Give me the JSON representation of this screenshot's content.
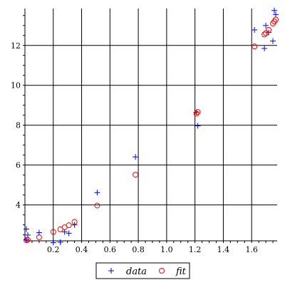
{
  "chart_data": {
    "type": "scatter",
    "title": "",
    "xlabel": "",
    "ylabel": "",
    "xlim": [
      0,
      1.78
    ],
    "ylim": [
      2.2,
      13.85
    ],
    "grid": true,
    "legend_position": "bottom-center",
    "x_ticks": [
      0.2,
      0.4,
      0.6,
      0.8,
      1.0,
      1.2,
      1.4,
      1.6
    ],
    "x_tick_labels": [
      "0.2",
      "0.4",
      "0.6",
      "0.8",
      "1.0",
      "1.2",
      "1.4",
      "1.6"
    ],
    "y_ticks": [
      4,
      6,
      8,
      10,
      12
    ],
    "y_tick_labels": [
      "4",
      "6",
      "8",
      "10",
      "12"
    ],
    "series": [
      {
        "name": "data",
        "marker": "plus",
        "color": "#0000ff",
        "points": [
          [
            0.01,
            2.79
          ],
          [
            0.02,
            2.49
          ],
          [
            0.01,
            2.25
          ],
          [
            0.1,
            2.61
          ],
          [
            0.2,
            2.11
          ],
          [
            0.25,
            2.13
          ],
          [
            0.28,
            2.65
          ],
          [
            0.31,
            2.58
          ],
          [
            0.35,
            3.0
          ],
          [
            0.51,
            4.62
          ],
          [
            0.78,
            6.41
          ],
          [
            1.21,
            8.65
          ],
          [
            1.22,
            7.97
          ],
          [
            1.62,
            12.78
          ],
          [
            1.69,
            11.85
          ],
          [
            1.7,
            13.0
          ],
          [
            1.72,
            12.65
          ],
          [
            1.75,
            12.22
          ],
          [
            1.76,
            13.75
          ],
          [
            1.77,
            13.55
          ]
        ]
      },
      {
        "name": "fit",
        "marker": "circle",
        "color": "#ff0000",
        "points": [
          [
            0.01,
            2.23
          ],
          [
            0.02,
            2.25
          ],
          [
            0.1,
            2.38
          ],
          [
            0.2,
            2.65
          ],
          [
            0.25,
            2.78
          ],
          [
            0.28,
            2.88
          ],
          [
            0.31,
            2.98
          ],
          [
            0.35,
            3.15
          ],
          [
            0.51,
            3.97
          ],
          [
            1.21,
            8.58
          ],
          [
            1.22,
            8.66
          ],
          [
            0.78,
            5.52
          ],
          [
            1.62,
            11.95
          ],
          [
            1.69,
            12.55
          ],
          [
            1.7,
            12.62
          ],
          [
            1.72,
            12.78
          ],
          [
            1.75,
            13.1
          ],
          [
            1.76,
            13.2
          ],
          [
            1.77,
            13.3
          ]
        ]
      }
    ]
  }
}
